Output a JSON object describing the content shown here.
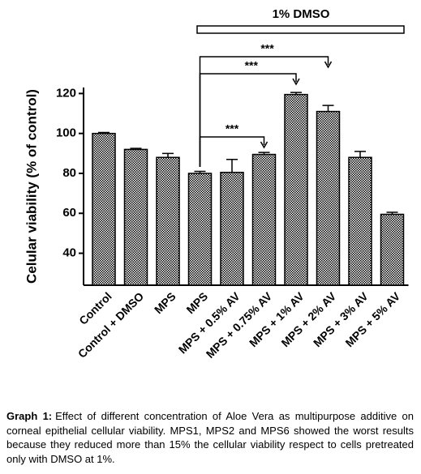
{
  "chart_data": {
    "type": "bar",
    "y_label": "Celular viability (% of control)",
    "categories": [
      "Control",
      "Control + DMSO",
      "MPS",
      "MPS",
      "MPS + 0.5% AV",
      "MPS + 0.75% AV",
      "MPS + 1% AV",
      "MPS + 2% AV",
      "MPS + 3% AV",
      "MPS + 5% AV"
    ],
    "values": [
      100,
      92,
      88,
      80,
      80.5,
      89.5,
      119.5,
      111,
      88,
      59.5
    ],
    "errors": [
      0.5,
      0.5,
      2,
      1,
      6.5,
      1,
      1,
      3,
      3,
      1
    ],
    "color": "#000000",
    "ylim": [
      24,
      123
    ],
    "yticks": [
      40,
      60,
      80,
      100,
      120
    ],
    "group_label": "1% DMSO",
    "annotations": [
      "***",
      "***",
      "***"
    ]
  },
  "caption": {
    "label": "Graph 1:",
    "text": "Effect of different concentration of Aloe Vera as multipurpose additive on corneal epithelial cellular viability. MPS1, MPS2 and MPS6 showed the worst results because they reduced more than 15% the cellular viability respect to cells pretreated only with DMSO at 1%."
  }
}
